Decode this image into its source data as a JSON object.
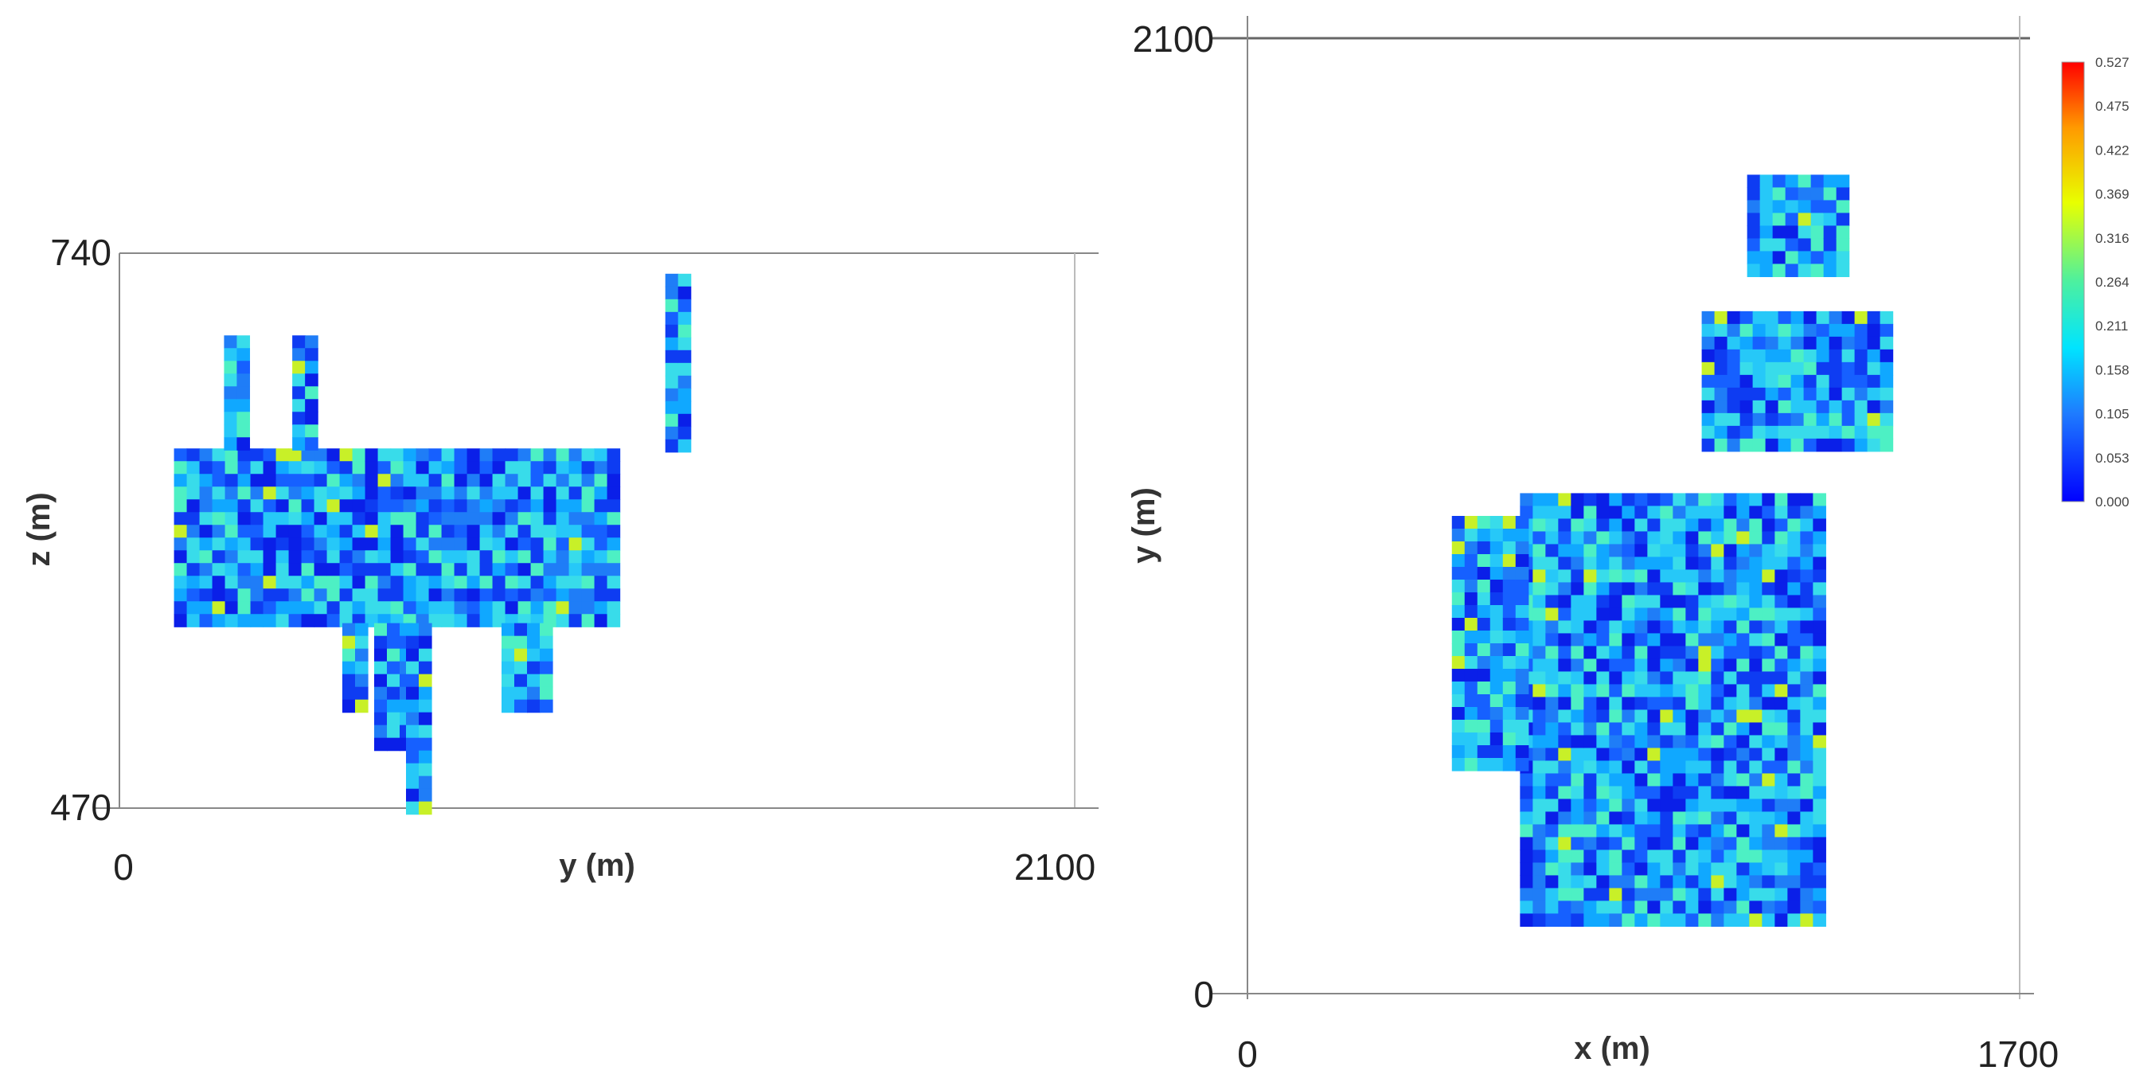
{
  "chart_data": [
    {
      "type": "heatmap",
      "title": "",
      "xlabel": "y (m)",
      "ylabel": "z (m)",
      "xlim": [
        0,
        2100
      ],
      "ylim": [
        470,
        740
      ],
      "xticks": [
        "0",
        "2100"
      ],
      "yticks": [
        "740",
        "470"
      ],
      "value_range": [
        0,
        0.527
      ],
      "grid": false,
      "rects": [
        {
          "y0": 120,
          "y1": 1100,
          "z0": 560,
          "z1": 645
        },
        {
          "y0": 230,
          "y1": 275,
          "z0": 645,
          "z1": 700
        },
        {
          "y0": 380,
          "y1": 430,
          "z0": 645,
          "z1": 700
        },
        {
          "y0": 490,
          "y1": 540,
          "z0": 520,
          "z1": 560
        },
        {
          "y0": 560,
          "y1": 640,
          "z0": 500,
          "z1": 560
        },
        {
          "y0": 630,
          "y1": 680,
          "z0": 470,
          "z1": 560
        },
        {
          "y0": 840,
          "y1": 930,
          "z0": 520,
          "z1": 560
        },
        {
          "y0": 1200,
          "y1": 1250,
          "z0": 645,
          "z1": 730
        }
      ]
    },
    {
      "type": "heatmap",
      "title": "",
      "xlabel": "x (m)",
      "ylabel": "y (m)",
      "xlim": [
        0,
        1700
      ],
      "ylim": [
        0,
        2100
      ],
      "xticks": [
        "0",
        "1700"
      ],
      "yticks": [
        "2100",
        "0"
      ],
      "value_range": [
        0,
        0.527
      ],
      "grid": false,
      "legend": "colorbar top-right",
      "colorbar_ticks": [
        "0.527",
        "0.475",
        "0.422",
        "0.369",
        "0.316",
        "0.264",
        "0.211",
        "0.158",
        "0.105",
        "0.053",
        "0.000"
      ],
      "rects": [
        {
          "x0": 600,
          "x1": 1260,
          "y0": 170,
          "y1": 1100
        },
        {
          "x0": 450,
          "x1": 600,
          "y0": 500,
          "y1": 1050
        },
        {
          "x0": 1000,
          "x1": 1400,
          "y0": 1200,
          "y1": 1500
        },
        {
          "x0": 1100,
          "x1": 1300,
          "y0": 1600,
          "y1": 1800
        }
      ]
    }
  ]
}
